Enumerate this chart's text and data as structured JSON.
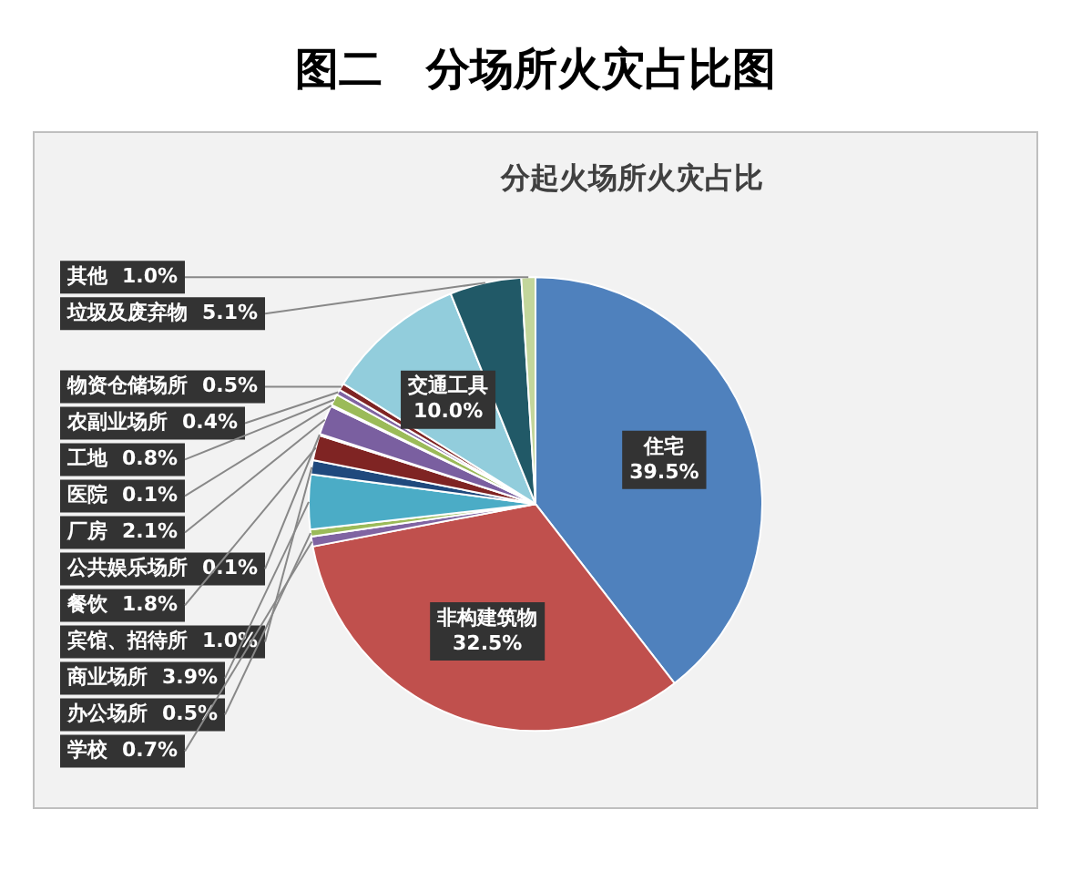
{
  "chart_data": {
    "type": "pie",
    "title": "图二　分场所火灾占比图",
    "subtitle": "分起火场所火灾占比",
    "categories": [
      "住宅",
      "非构建筑物",
      "学校",
      "办公场所",
      "商业场所",
      "宾馆、招待所",
      "餐饮",
      "公共娱乐场所",
      "厂房",
      "医院",
      "工地",
      "农副业场所",
      "物资仓储场所",
      "交通工具",
      "垃圾及废弃物",
      "其他"
    ],
    "values": [
      39.5,
      32.5,
      0.7,
      0.5,
      3.9,
      1.0,
      1.8,
      0.1,
      2.1,
      0.1,
      0.8,
      0.4,
      0.5,
      10.0,
      5.1,
      1.0
    ],
    "colors": [
      "#4f81bd",
      "#c0504d",
      "#8064a2",
      "#9bbb59",
      "#4bacc6",
      "#1f497d",
      "#7f2423",
      "#4f6228",
      "#7a5fa0",
      "#b9cde5",
      "#9bbb59",
      "#8064a2",
      "#7f2423",
      "#92cddc",
      "#215967",
      "#c3d69b"
    ],
    "value_labels": [
      "39.5%",
      "32.5%",
      "0.7%",
      "0.5%",
      "3.9%",
      "1.0%",
      "1.8%",
      "0.1%",
      "2.1%",
      "0.1%",
      "0.8%",
      "0.4%",
      "0.5%",
      "10.0%",
      "5.1%",
      "1.0%"
    ],
    "legend": false
  }
}
